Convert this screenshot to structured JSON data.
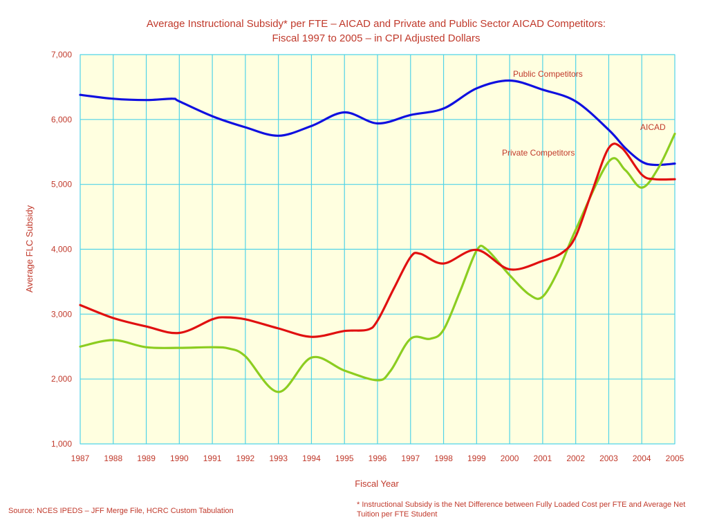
{
  "chart_data": {
    "type": "line",
    "title_line1": "Average Instructional Subsidy* per FTE – AICAD and Private and Public Sector AICAD Competitors:",
    "title_line2": "Fiscal 1997 to 2005 – in CPI Adjusted Dollars",
    "xlabel": "Fiscal Year",
    "ylabel": "Average FLC Subsidy",
    "ylim": [
      1000,
      7000
    ],
    "yticks": [
      1000,
      2000,
      3000,
      4000,
      5000,
      6000,
      7000
    ],
    "ytick_labels": [
      "1,000",
      "2,000",
      "3,000",
      "4,000",
      "5,000",
      "6,000",
      "7,000"
    ],
    "xlim": [
      1987,
      2005
    ],
    "x_tick_labels": [
      "1987",
      "1988",
      "1989",
      "1990",
      "1991",
      "1992",
      "1993",
      "1994",
      "1995",
      "1996",
      "1997",
      "1998",
      "1999",
      "2000",
      "2001",
      "2002",
      "2003",
      "2004",
      "2005"
    ],
    "grid": true,
    "background_color": "#ffffe0",
    "grid_color": "#4fd3e8",
    "series": [
      {
        "name": "Public Competitors",
        "color": "#1010e0",
        "x": [
          1987,
          1988,
          1989,
          1989.8,
          1990,
          1991,
          1992,
          1993,
          1994,
          1995,
          1996,
          1997,
          1998,
          1999,
          2000,
          2001,
          2002,
          2003,
          2003.5,
          2004,
          2004.4,
          2005
        ],
        "y": [
          6380,
          6320,
          6300,
          6320,
          6280,
          6050,
          5880,
          5750,
          5900,
          6110,
          5940,
          6070,
          6170,
          6480,
          6600,
          6460,
          6280,
          5840,
          5560,
          5350,
          5300,
          5320
        ]
      },
      {
        "name": "AICAD",
        "color": "#e01010",
        "x": [
          1987,
          1988,
          1989,
          1990,
          1991,
          1991.4,
          1992,
          1993,
          1994,
          1995,
          1995.7,
          1996,
          1996.5,
          1997,
          1997.3,
          1998,
          1999,
          2000,
          2001,
          2001.6,
          2002,
          2002.5,
          2003,
          2003.4,
          2004,
          2004.4,
          2005
        ],
        "y": [
          3140,
          2940,
          2810,
          2710,
          2920,
          2950,
          2920,
          2780,
          2650,
          2740,
          2760,
          2900,
          3400,
          3880,
          3930,
          3780,
          3990,
          3690,
          3820,
          3950,
          4200,
          4900,
          5560,
          5560,
          5150,
          5080,
          5080
        ]
      },
      {
        "name": "Private Competitors",
        "color": "#8ccd20",
        "x": [
          1987,
          1988,
          1989,
          1990,
          1991,
          1991.5,
          1992,
          1993,
          1994,
          1995,
          1996,
          1996.4,
          1997,
          1997.6,
          1998,
          1998.5,
          1999,
          1999.3,
          2000,
          2000.6,
          2001,
          2001.5,
          2002,
          2003,
          2003.5,
          2004,
          2004.5,
          2005
        ],
        "y": [
          2500,
          2600,
          2490,
          2480,
          2490,
          2470,
          2350,
          1800,
          2330,
          2130,
          1980,
          2130,
          2620,
          2620,
          2760,
          3350,
          3980,
          4000,
          3600,
          3300,
          3270,
          3700,
          4300,
          5350,
          5220,
          4950,
          5250,
          5780
        ]
      }
    ],
    "annotations": [
      {
        "text": "Public Competitors",
        "series": "Public Competitors"
      },
      {
        "text": "AICAD",
        "series": "AICAD"
      },
      {
        "text": "Private Competitors",
        "series": "Private Competitors"
      }
    ]
  },
  "footer": {
    "source": "Source: NCES IPEDS – JFF Merge File, HCRC Custom Tabulation",
    "footnote": "* Instructional Subsidy is the Net Difference between Fully Loaded Cost per FTE and Average Net Tuition per FTE Student"
  }
}
